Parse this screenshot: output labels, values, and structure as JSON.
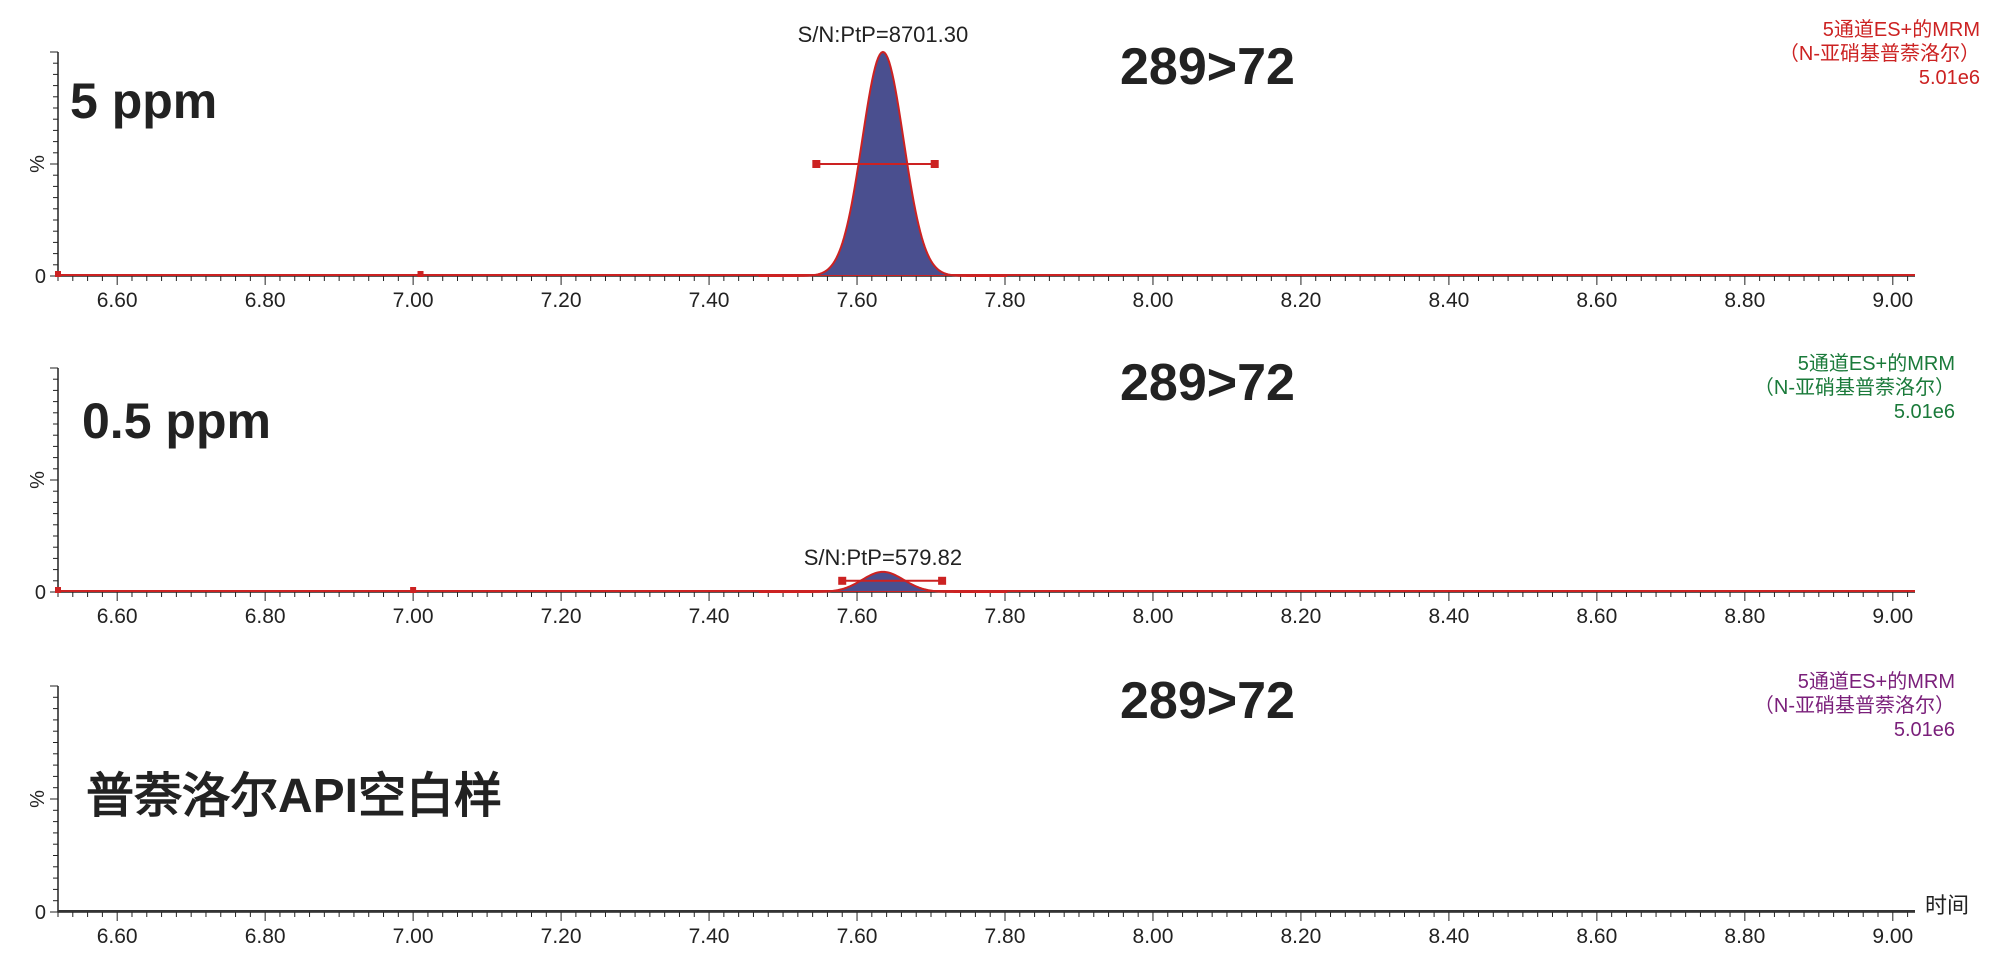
{
  "chart_data": [
    {
      "type": "line",
      "sample_label": "5 ppm",
      "transition": "289>72",
      "trace_info": [
        "5通道ES+的MRM",
        "（N-亚硝基普萘洛尔）",
        "5.01e6"
      ],
      "trace_color": "#cc2222",
      "fill_color": "#4a4f8f",
      "ylabel": "%",
      "y_zero_label": "0",
      "xlabel": "",
      "xlim": [
        6.52,
        9.03
      ],
      "ylim": [
        0,
        100
      ],
      "x_ticks": [
        "6.60",
        "6.80",
        "7.00",
        "7.20",
        "7.40",
        "7.60",
        "7.80",
        "8.00",
        "8.20",
        "8.40",
        "8.60",
        "8.80",
        "9.00"
      ],
      "peak": {
        "rt": 7.635,
        "height": 100,
        "sigma": 0.028
      },
      "integration_markers": [
        6.52,
        7.01
      ],
      "peak_width_bar": {
        "start": 7.545,
        "end": 7.705,
        "level": 50
      },
      "sn_label": "S/N:PtP=8701.30"
    },
    {
      "type": "line",
      "sample_label": "0.5 ppm",
      "transition": "289>72",
      "trace_info": [
        "5通道ES+的MRM",
        "（N-亚硝基普萘洛尔）",
        "5.01e6"
      ],
      "trace_color": "#cc2222",
      "fill_color": "#4a4f8f",
      "info_color": "#1a7a3a",
      "ylabel": "%",
      "y_zero_label": "0",
      "xlabel": "",
      "xlim": [
        6.52,
        9.03
      ],
      "ylim": [
        0,
        100
      ],
      "x_ticks": [
        "6.60",
        "6.80",
        "7.00",
        "7.20",
        "7.40",
        "7.60",
        "7.80",
        "8.00",
        "8.20",
        "8.40",
        "8.60",
        "8.80",
        "9.00"
      ],
      "peak": {
        "rt": 7.635,
        "height": 9,
        "sigma": 0.028
      },
      "integration_markers": [
        6.52,
        7.0
      ],
      "peak_width_bar": {
        "start": 7.58,
        "end": 7.715,
        "level": 5
      },
      "sn_label": "S/N:PtP=579.82"
    },
    {
      "type": "line",
      "sample_label": "普萘洛尔API空白样",
      "transition": "289>72",
      "trace_info": [
        "5通道ES+的MRM",
        "（N-亚硝基普萘洛尔）",
        "5.01e6"
      ],
      "info_color": "#7a1f7a",
      "trace_color": "#333333",
      "ylabel": "%",
      "y_zero_label": "0",
      "xlabel": "时间",
      "xlim": [
        6.52,
        9.03
      ],
      "ylim": [
        0,
        100
      ],
      "x_ticks": [
        "6.60",
        "6.80",
        "7.00",
        "7.20",
        "7.40",
        "7.60",
        "7.80",
        "8.00",
        "8.20",
        "8.40",
        "8.60",
        "8.80",
        "9.00"
      ],
      "peak": null
    }
  ]
}
